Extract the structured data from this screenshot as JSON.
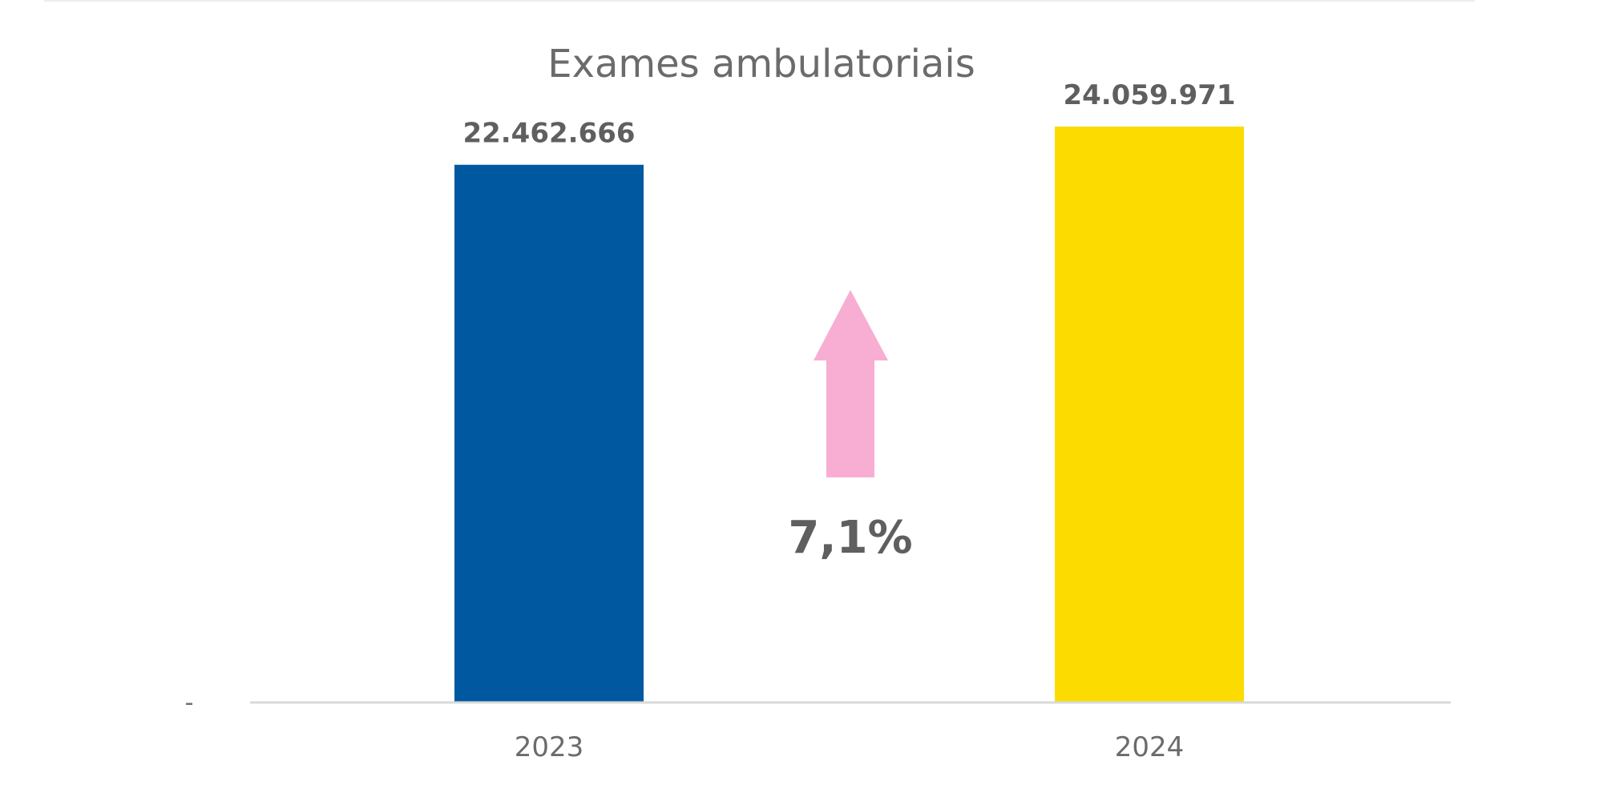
{
  "colors": {
    "bar_2023": "#0058A0",
    "bar_2024": "#FCDC00",
    "arrow": "#F7AED2",
    "text": "#5f5f5f",
    "axis": "#d9d9d9"
  },
  "chart_data": {
    "type": "bar",
    "title": "Exames ambulatoriais",
    "categories": [
      "2023",
      "2024"
    ],
    "values": [
      22462666,
      24059971
    ],
    "value_labels": [
      "22.462.666",
      "24.059.971"
    ],
    "xlabel": "",
    "ylabel": "",
    "ylim": [
      0,
      26000000
    ],
    "y_tick_labels": [
      "-"
    ],
    "grid": false,
    "legend": "none",
    "annotation": {
      "text": "7,1%",
      "icon": "up-arrow-icon"
    }
  }
}
